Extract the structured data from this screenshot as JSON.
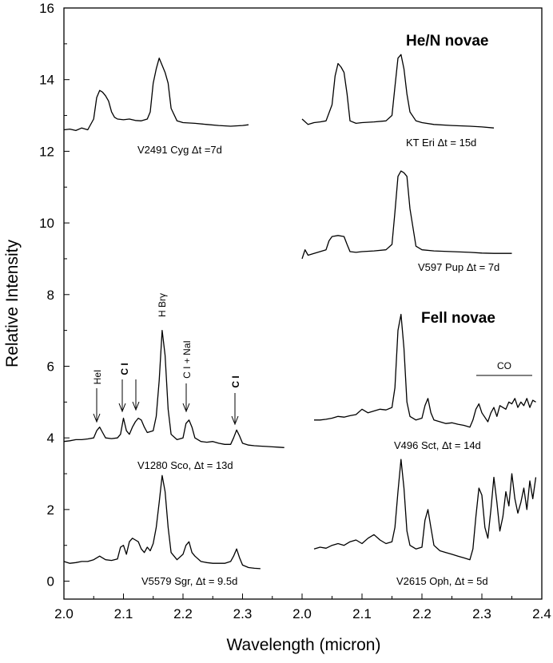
{
  "chart_data": {
    "type": "line",
    "ylabel": "Relative Intensity",
    "xlabel": "Wavelength (micron)",
    "ylim": [
      -0.5,
      16
    ],
    "yticks": [
      "0",
      "2",
      "4",
      "6",
      "8",
      "10",
      "12",
      "14",
      "16"
    ],
    "panels": [
      {
        "name": "left",
        "xlim": [
          2.0,
          2.4
        ],
        "xtick_labels": [
          "2.0",
          "2.1",
          "2.2",
          "2.3"
        ]
      },
      {
        "name": "right",
        "xlim": [
          2.0,
          2.4
        ],
        "xtick_labels": [
          "2.0",
          "2.1",
          "2.2",
          "2.3",
          "2.4"
        ]
      }
    ],
    "groups": [
      "He/N novae",
      "Fell  novae"
    ],
    "series": [
      {
        "name": "V2491 Cyg",
        "label": "V2491 Cyg Δt =7d",
        "panel": "left",
        "x": [
          2.0,
          2.01,
          2.02,
          2.03,
          2.04,
          2.05,
          2.055,
          2.06,
          2.065,
          2.07,
          2.075,
          2.08,
          2.085,
          2.09,
          2.1,
          2.11,
          2.12,
          2.13,
          2.14,
          2.145,
          2.15,
          2.155,
          2.16,
          2.165,
          2.17,
          2.175,
          2.18,
          2.19,
          2.2,
          2.22,
          2.24,
          2.26,
          2.28,
          2.3,
          2.31
        ],
        "values": [
          12.6,
          12.62,
          12.58,
          12.65,
          12.6,
          12.9,
          13.5,
          13.7,
          13.65,
          13.55,
          13.4,
          13.1,
          12.95,
          12.9,
          12.88,
          12.9,
          12.86,
          12.85,
          12.9,
          13.1,
          13.9,
          14.3,
          14.6,
          14.4,
          14.2,
          13.9,
          13.2,
          12.85,
          12.8,
          12.78,
          12.75,
          12.72,
          12.7,
          12.72,
          12.74
        ]
      },
      {
        "name": "KT Eri",
        "label": "KT Eri Δt = 15d",
        "panel": "right",
        "x": [
          2.0,
          2.01,
          2.02,
          2.03,
          2.04,
          2.05,
          2.055,
          2.06,
          2.065,
          2.07,
          2.075,
          2.08,
          2.09,
          2.1,
          2.12,
          2.14,
          2.15,
          2.155,
          2.16,
          2.165,
          2.17,
          2.175,
          2.18,
          2.19,
          2.2,
          2.22,
          2.25,
          2.28,
          2.3,
          2.32
        ],
        "values": [
          12.9,
          12.75,
          12.8,
          12.82,
          12.85,
          13.3,
          14.1,
          14.45,
          14.35,
          14.2,
          13.6,
          12.85,
          12.78,
          12.8,
          12.82,
          12.85,
          13.0,
          13.8,
          14.6,
          14.7,
          14.3,
          13.6,
          13.1,
          12.85,
          12.8,
          12.75,
          12.72,
          12.7,
          12.68,
          12.65
        ]
      },
      {
        "name": "V597 Pup",
        "label": "V597 Pup Δt = 7d",
        "panel": "right",
        "x": [
          2.0,
          2.005,
          2.01,
          2.02,
          2.03,
          2.04,
          2.045,
          2.05,
          2.06,
          2.07,
          2.075,
          2.08,
          2.09,
          2.1,
          2.12,
          2.14,
          2.15,
          2.155,
          2.16,
          2.165,
          2.17,
          2.175,
          2.18,
          2.19,
          2.2,
          2.22,
          2.25,
          2.28,
          2.3,
          2.32,
          2.35
        ],
        "values": [
          9.0,
          9.25,
          9.1,
          9.15,
          9.2,
          9.25,
          9.5,
          9.62,
          9.65,
          9.62,
          9.4,
          9.2,
          9.18,
          9.2,
          9.22,
          9.25,
          9.4,
          10.3,
          11.3,
          11.45,
          11.4,
          11.3,
          10.4,
          9.35,
          9.25,
          9.22,
          9.2,
          9.18,
          9.16,
          9.15,
          9.15
        ]
      },
      {
        "name": "V1280 Sco",
        "label": "V1280 Sco,  Δt = 13d",
        "panel": "left",
        "x": [
          2.0,
          2.01,
          2.02,
          2.03,
          2.04,
          2.05,
          2.055,
          2.06,
          2.065,
          2.07,
          2.08,
          2.09,
          2.095,
          2.1,
          2.105,
          2.11,
          2.115,
          2.12,
          2.125,
          2.13,
          2.135,
          2.14,
          2.15,
          2.155,
          2.16,
          2.165,
          2.17,
          2.175,
          2.18,
          2.19,
          2.2,
          2.205,
          2.21,
          2.215,
          2.22,
          2.23,
          2.24,
          2.25,
          2.26,
          2.27,
          2.28,
          2.285,
          2.29,
          2.295,
          2.3,
          2.31,
          2.32,
          2.33,
          2.34,
          2.35,
          2.36,
          2.37
        ],
        "values": [
          3.9,
          3.92,
          3.95,
          3.95,
          3.97,
          4.0,
          4.2,
          4.3,
          4.15,
          4.0,
          3.98,
          4.0,
          4.1,
          4.55,
          4.2,
          4.1,
          4.3,
          4.45,
          4.55,
          4.5,
          4.3,
          4.15,
          4.2,
          4.6,
          5.6,
          7.0,
          6.3,
          4.8,
          4.1,
          3.95,
          4.0,
          4.4,
          4.5,
          4.3,
          4.0,
          3.9,
          3.88,
          3.9,
          3.85,
          3.82,
          3.82,
          4.0,
          4.22,
          4.05,
          3.85,
          3.8,
          3.78,
          3.77,
          3.76,
          3.75,
          3.74,
          3.73
        ]
      },
      {
        "name": "V496 Sct",
        "label": "V496 Sct,  Δt = 14d",
        "panel": "right",
        "x": [
          2.02,
          2.03,
          2.04,
          2.05,
          2.06,
          2.07,
          2.08,
          2.09,
          2.1,
          2.11,
          2.12,
          2.13,
          2.14,
          2.15,
          2.155,
          2.16,
          2.165,
          2.17,
          2.175,
          2.18,
          2.19,
          2.2,
          2.205,
          2.21,
          2.215,
          2.22,
          2.23,
          2.24,
          2.25,
          2.26,
          2.27,
          2.28,
          2.285,
          2.29,
          2.295,
          2.3,
          2.31,
          2.315,
          2.32,
          2.325,
          2.33,
          2.34,
          2.345,
          2.35,
          2.355,
          2.36,
          2.365,
          2.37,
          2.375,
          2.38,
          2.385,
          2.39
        ],
        "values": [
          4.5,
          4.5,
          4.52,
          4.55,
          4.6,
          4.58,
          4.62,
          4.65,
          4.8,
          4.7,
          4.75,
          4.8,
          4.78,
          4.85,
          5.4,
          7.0,
          7.45,
          6.5,
          5.0,
          4.6,
          4.5,
          4.55,
          4.9,
          5.1,
          4.7,
          4.5,
          4.45,
          4.4,
          4.42,
          4.38,
          4.35,
          4.3,
          4.5,
          4.8,
          4.95,
          4.7,
          4.45,
          4.7,
          4.85,
          4.6,
          4.9,
          4.8,
          5.0,
          4.95,
          5.1,
          4.85,
          5.0,
          4.9,
          5.1,
          4.85,
          5.05,
          5.0
        ]
      },
      {
        "name": "V5579 Sgr",
        "label": "V5579 Sgr,  Δt = 9.5d",
        "panel": "left",
        "x": [
          2.0,
          2.01,
          2.02,
          2.03,
          2.04,
          2.05,
          2.06,
          2.07,
          2.08,
          2.09,
          2.095,
          2.1,
          2.105,
          2.11,
          2.115,
          2.12,
          2.125,
          2.13,
          2.135,
          2.14,
          2.145,
          2.15,
          2.155,
          2.16,
          2.165,
          2.17,
          2.175,
          2.18,
          2.19,
          2.2,
          2.205,
          2.21,
          2.215,
          2.22,
          2.23,
          2.24,
          2.25,
          2.26,
          2.27,
          2.28,
          2.285,
          2.29,
          2.295,
          2.3,
          2.31,
          2.32,
          2.33
        ],
        "values": [
          0.55,
          0.5,
          0.52,
          0.55,
          0.55,
          0.6,
          0.7,
          0.6,
          0.58,
          0.62,
          0.95,
          1.0,
          0.75,
          1.1,
          1.2,
          1.15,
          1.1,
          0.9,
          0.8,
          0.95,
          0.85,
          1.05,
          1.5,
          2.2,
          2.95,
          2.5,
          1.5,
          0.8,
          0.6,
          0.75,
          1.0,
          1.1,
          0.8,
          0.7,
          0.55,
          0.52,
          0.5,
          0.5,
          0.5,
          0.55,
          0.7,
          0.9,
          0.65,
          0.45,
          0.38,
          0.36,
          0.35
        ]
      },
      {
        "name": "V2615 Oph",
        "label": "V2615 Oph,  Δt = 5d",
        "panel": "right",
        "x": [
          2.02,
          2.03,
          2.04,
          2.05,
          2.06,
          2.07,
          2.08,
          2.09,
          2.1,
          2.11,
          2.12,
          2.13,
          2.14,
          2.15,
          2.155,
          2.16,
          2.165,
          2.17,
          2.175,
          2.18,
          2.19,
          2.2,
          2.205,
          2.21,
          2.215,
          2.22,
          2.23,
          2.24,
          2.25,
          2.26,
          2.27,
          2.28,
          2.285,
          2.29,
          2.295,
          2.3,
          2.305,
          2.31,
          2.315,
          2.32,
          2.325,
          2.33,
          2.335,
          2.34,
          2.345,
          2.35,
          2.355,
          2.36,
          2.365,
          2.37,
          2.375,
          2.38,
          2.385,
          2.39
        ],
        "values": [
          0.9,
          0.95,
          0.92,
          1.0,
          1.05,
          1.0,
          1.1,
          1.15,
          1.05,
          1.2,
          1.3,
          1.15,
          1.05,
          1.1,
          1.5,
          2.5,
          3.4,
          2.6,
          1.4,
          1.0,
          0.9,
          0.95,
          1.7,
          2.0,
          1.5,
          1.0,
          0.85,
          0.8,
          0.75,
          0.7,
          0.65,
          0.6,
          0.9,
          1.8,
          2.6,
          2.4,
          1.5,
          1.2,
          2.0,
          2.9,
          2.2,
          1.4,
          1.8,
          2.5,
          2.1,
          3.0,
          2.3,
          1.9,
          2.2,
          2.6,
          2.0,
          2.8,
          2.3,
          2.9
        ]
      }
    ],
    "annotations": [
      {
        "text": "HeI",
        "x": 2.058,
        "panel": "left"
      },
      {
        "text": "C I",
        "x": 2.102,
        "panel": "left"
      },
      {
        "text": "H Brγ",
        "x": 2.166,
        "panel": "left"
      },
      {
        "text": "C I + NaI",
        "x": 2.209,
        "panel": "left"
      },
      {
        "text": "C I",
        "x": 2.29,
        "panel": "left"
      },
      {
        "text": "CO",
        "x": 2.335,
        "panel": "right"
      }
    ]
  }
}
